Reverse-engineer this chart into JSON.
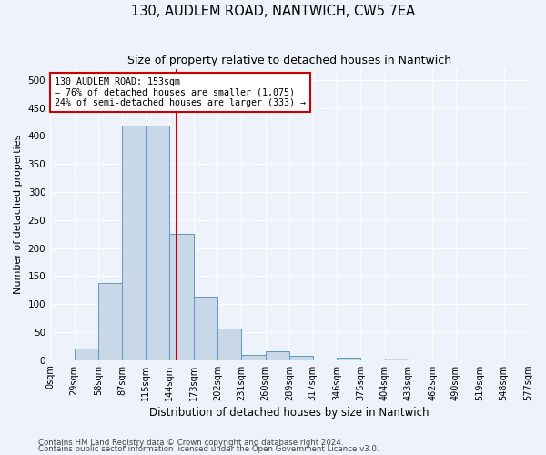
{
  "title": "130, AUDLEM ROAD, NANTWICH, CW5 7EA",
  "subtitle": "Size of property relative to detached houses in Nantwich",
  "xlabel": "Distribution of detached houses by size in Nantwich",
  "ylabel": "Number of detached properties",
  "footer1": "Contains HM Land Registry data © Crown copyright and database right 2024.",
  "footer2": "Contains public sector information licensed under the Open Government Licence v3.0.",
  "bin_edges": [
    0,
    29,
    58,
    87,
    115,
    144,
    173,
    202,
    231,
    260,
    289,
    317,
    346,
    375,
    404,
    433,
    462,
    490,
    519,
    548,
    577
  ],
  "bar_heights": [
    0,
    20,
    138,
    418,
    418,
    225,
    113,
    57,
    10,
    15,
    7,
    0,
    4,
    0,
    2,
    0,
    0,
    0,
    0,
    0
  ],
  "bar_color": "#c8d8e8",
  "bar_edge_color": "#5a9abe",
  "bar_edge_width": 0.7,
  "red_line_x": 153,
  "annotation_text": "130 AUDLEM ROAD: 153sqm\n← 76% of detached houses are smaller (1,075)\n24% of semi-detached houses are larger (333) →",
  "annotation_box_color": "#ffffff",
  "annotation_box_edge_color": "#cc0000",
  "ylim": [
    0,
    520
  ],
  "yticks": [
    0,
    50,
    100,
    150,
    200,
    250,
    300,
    350,
    400,
    450,
    500
  ],
  "background_color": "#eef2fa",
  "grid_color": "#ffffff",
  "tick_label_fontsize": 7,
  "title_fontsize": 10.5,
  "subtitle_fontsize": 9,
  "xlabel_fontsize": 8.5,
  "ylabel_fontsize": 8
}
